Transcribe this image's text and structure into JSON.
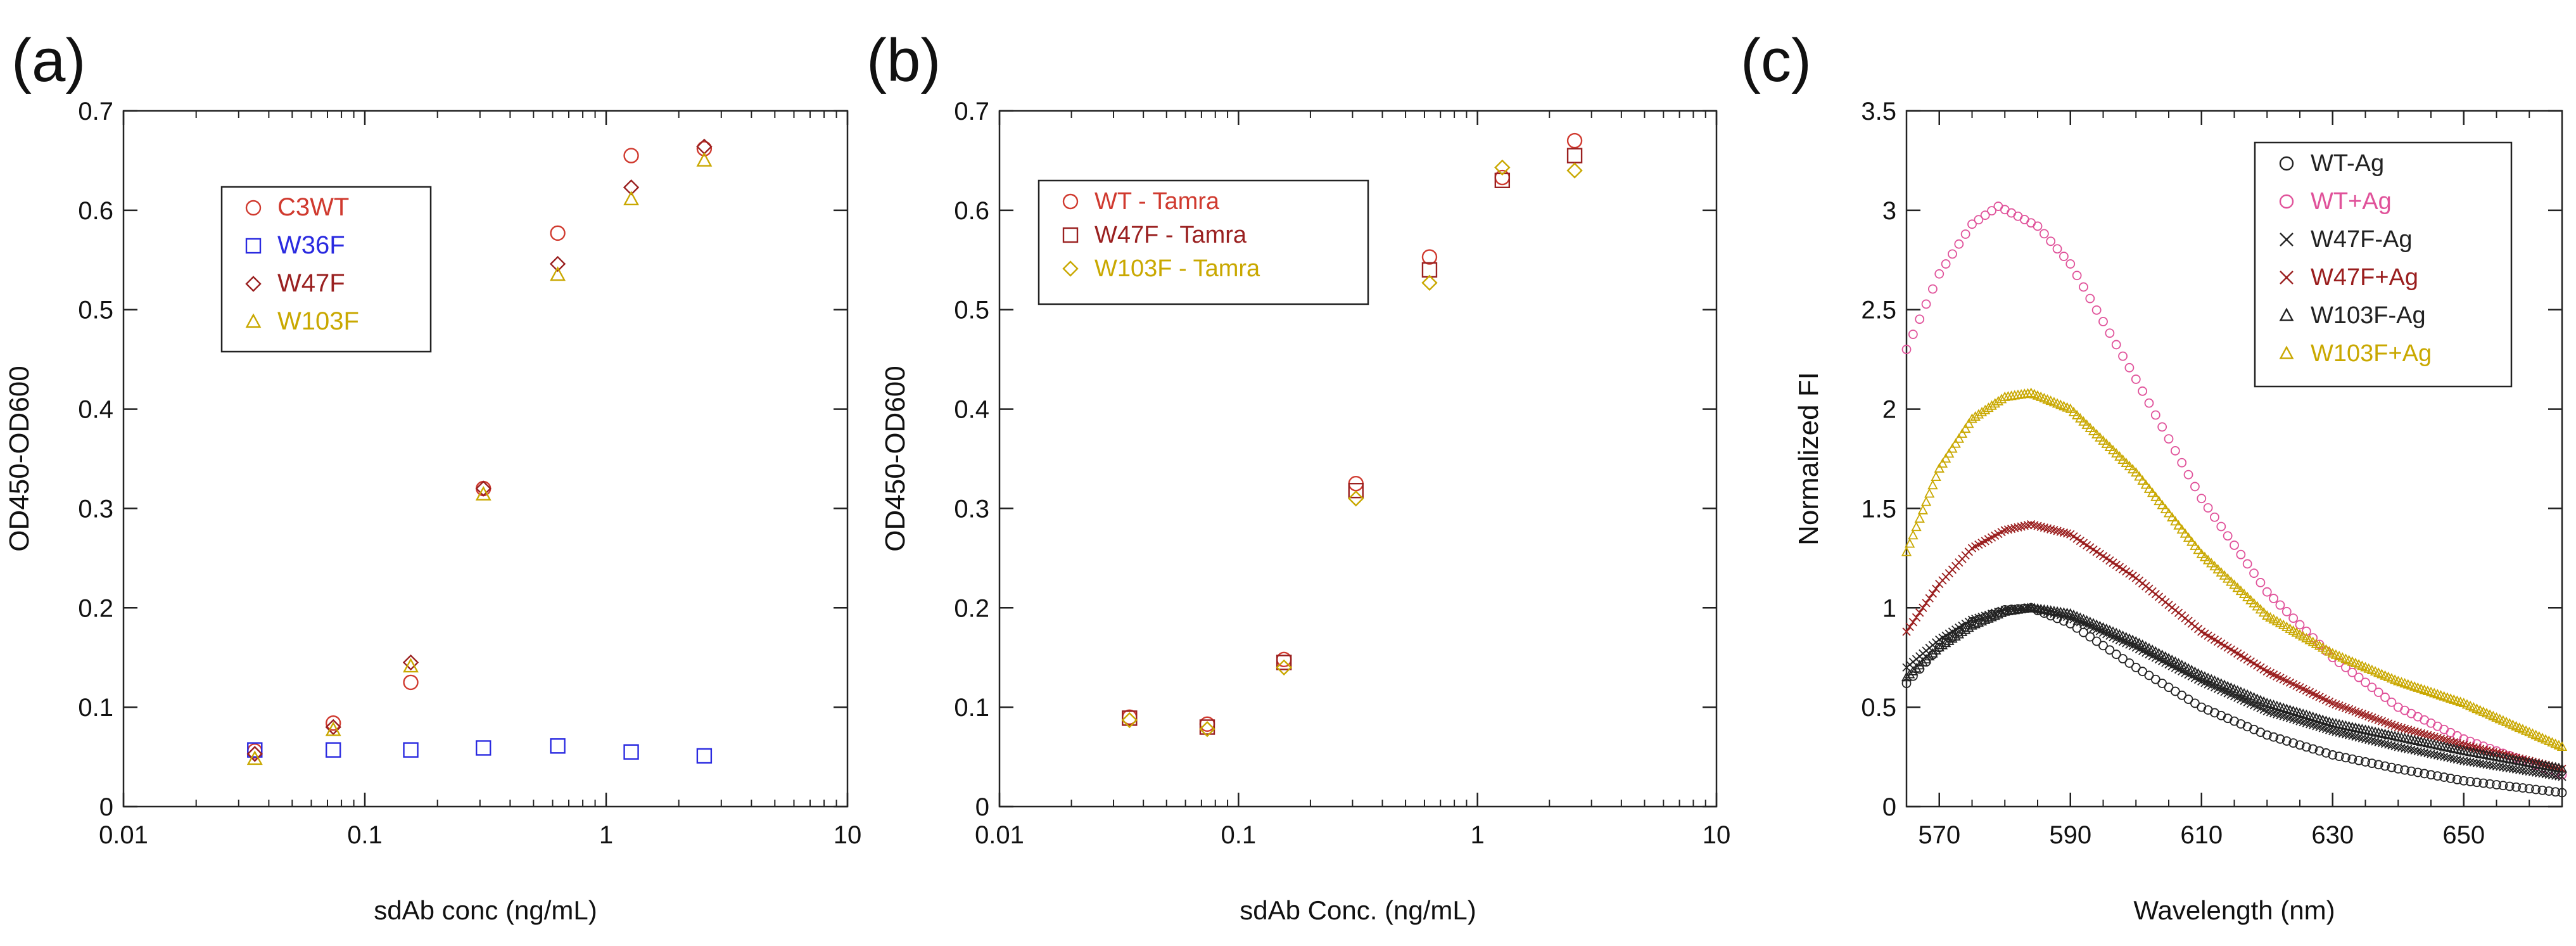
{
  "chart_data": [
    {
      "panel": "(a)",
      "type": "scatter",
      "xscale": "log",
      "xlim": [
        0.01,
        10
      ],
      "ylim": [
        0,
        0.7
      ],
      "xticks": [
        0.01,
        0.1,
        1,
        10
      ],
      "xtick_labels": [
        "0.01",
        "0.1",
        "1",
        "10"
      ],
      "yticks": [
        0,
        0.1,
        0.2,
        0.3,
        0.4,
        0.5,
        0.6,
        0.7
      ],
      "ytick_labels": [
        "0",
        "0.1",
        "0.2",
        "0.3",
        "0.4",
        "0.5",
        "0.6",
        "0.7"
      ],
      "xlabel": "sdAb conc (ng/mL)",
      "ylabel": "OD450-OD600",
      "legend_position": "upper-left",
      "series": [
        {
          "name": "C3WT",
          "marker": "circle",
          "color": "#d03a2f",
          "x": [
            0.035,
            0.074,
            0.155,
            0.31,
            0.63,
            1.27,
            2.55
          ],
          "y": [
            0.056,
            0.084,
            0.125,
            0.32,
            0.577,
            0.655,
            0.662
          ]
        },
        {
          "name": "W36F",
          "marker": "square",
          "color": "#2a2ae0",
          "x": [
            0.035,
            0.074,
            0.155,
            0.31,
            0.63,
            1.27,
            2.55
          ],
          "y": [
            0.057,
            0.057,
            0.057,
            0.059,
            0.061,
            0.055,
            0.051
          ]
        },
        {
          "name": "W47F",
          "marker": "diamond",
          "color": "#9a2020",
          "x": [
            0.035,
            0.074,
            0.155,
            0.31,
            0.63,
            1.27,
            2.55
          ],
          "y": [
            0.053,
            0.08,
            0.145,
            0.32,
            0.546,
            0.623,
            0.664
          ]
        },
        {
          "name": "W103F",
          "marker": "triangle",
          "color": "#c9a800",
          "x": [
            0.035,
            0.074,
            0.155,
            0.31,
            0.63,
            1.27,
            2.55
          ],
          "y": [
            0.048,
            0.077,
            0.141,
            0.314,
            0.535,
            0.611,
            0.65
          ]
        }
      ]
    },
    {
      "panel": "(b)",
      "type": "scatter",
      "xscale": "log",
      "xlim": [
        0.01,
        10
      ],
      "ylim": [
        0,
        0.7
      ],
      "xticks": [
        0.01,
        0.1,
        1,
        10
      ],
      "xtick_labels": [
        "0.01",
        "0.1",
        "1",
        "10"
      ],
      "yticks": [
        0,
        0.1,
        0.2,
        0.3,
        0.4,
        0.5,
        0.6,
        0.7
      ],
      "ytick_labels": [
        "0",
        "0.1",
        "0.2",
        "0.3",
        "0.4",
        "0.5",
        "0.6",
        "0.7"
      ],
      "xlabel": "sdAb Conc. (ng/mL)",
      "ylabel": "OD450-OD600",
      "legend_position": "upper-left",
      "series": [
        {
          "name": "WT - Tamra",
          "marker": "circle",
          "color": "#d03a2f",
          "x": [
            0.035,
            0.074,
            0.155,
            0.31,
            0.63,
            1.27,
            2.55
          ],
          "y": [
            0.09,
            0.083,
            0.148,
            0.325,
            0.553,
            0.633,
            0.67
          ]
        },
        {
          "name": "W47F - Tamra",
          "marker": "square",
          "color": "#9a2020",
          "x": [
            0.035,
            0.074,
            0.155,
            0.31,
            0.63,
            1.27,
            2.55
          ],
          "y": [
            0.089,
            0.08,
            0.145,
            0.318,
            0.54,
            0.63,
            0.655
          ]
        },
        {
          "name": "W103F - Tamra",
          "marker": "diamond",
          "color": "#c9a800",
          "x": [
            0.035,
            0.074,
            0.155,
            0.31,
            0.63,
            1.27,
            2.55
          ],
          "y": [
            0.087,
            0.078,
            0.14,
            0.31,
            0.527,
            0.643,
            0.64
          ]
        }
      ]
    },
    {
      "panel": "(c)",
      "type": "scatter",
      "xlim": [
        565,
        665
      ],
      "ylim": [
        0,
        3.5
      ],
      "xticks": [
        570,
        590,
        610,
        630,
        650
      ],
      "xtick_labels": [
        "570",
        "590",
        "610",
        "630",
        "650"
      ],
      "yticks": [
        0,
        0.5,
        1,
        1.5,
        2,
        2.5,
        3,
        3.5
      ],
      "ytick_labels": [
        "0",
        "0.5",
        "1",
        "1.5",
        "2",
        "2.5",
        "3",
        "3.5"
      ],
      "xlabel": "Wavelength (nm)",
      "ylabel": "Normalized FI",
      "legend_position": "upper-right",
      "series": [
        {
          "name": "WT-Ag",
          "marker": "circle",
          "color": "#222222",
          "x_step": 1,
          "wl": [
            565,
            570,
            575,
            580,
            584,
            590,
            600,
            610,
            620,
            630,
            640,
            650,
            665
          ],
          "fi": [
            0.62,
            0.8,
            0.93,
            0.99,
            1.0,
            0.92,
            0.7,
            0.5,
            0.36,
            0.26,
            0.19,
            0.13,
            0.07
          ]
        },
        {
          "name": "WT+Ag",
          "marker": "circle",
          "color": "#e0529a",
          "x_step": 1,
          "wl": [
            565,
            570,
            575,
            579,
            585,
            590,
            600,
            610,
            620,
            630,
            640,
            650,
            665
          ],
          "fi": [
            2.3,
            2.68,
            2.93,
            3.02,
            2.92,
            2.73,
            2.15,
            1.55,
            1.08,
            0.75,
            0.5,
            0.34,
            0.16
          ]
        },
        {
          "name": "W47F-Ag",
          "marker": "x",
          "color": "#222222",
          "x_step": 0.5,
          "wl": [
            565,
            570,
            575,
            580,
            584,
            590,
            600,
            610,
            620,
            630,
            640,
            650,
            665
          ],
          "fi": [
            0.7,
            0.84,
            0.94,
            0.99,
            1.0,
            0.95,
            0.8,
            0.63,
            0.48,
            0.38,
            0.3,
            0.23,
            0.15
          ]
        },
        {
          "name": "W47F+Ag",
          "marker": "x",
          "color": "#9a1e1e",
          "x_step": 0.5,
          "wl": [
            565,
            570,
            575,
            580,
            584,
            590,
            600,
            610,
            620,
            630,
            640,
            650,
            665
          ],
          "fi": [
            0.88,
            1.12,
            1.3,
            1.39,
            1.42,
            1.37,
            1.15,
            0.88,
            0.68,
            0.52,
            0.4,
            0.31,
            0.19
          ]
        },
        {
          "name": "W103F-Ag",
          "marker": "triangle",
          "color": "#222222",
          "x_step": 0.5,
          "wl": [
            565,
            570,
            575,
            580,
            584,
            590,
            600,
            610,
            620,
            630,
            640,
            650,
            665
          ],
          "fi": [
            0.65,
            0.8,
            0.91,
            0.98,
            1.0,
            0.97,
            0.83,
            0.66,
            0.52,
            0.42,
            0.35,
            0.28,
            0.19
          ]
        },
        {
          "name": "W103F+Ag",
          "marker": "triangle",
          "color": "#c9a800",
          "x_step": 0.5,
          "wl": [
            565,
            570,
            575,
            580,
            584,
            590,
            600,
            610,
            620,
            630,
            640,
            650,
            665
          ],
          "fi": [
            1.28,
            1.7,
            1.95,
            2.06,
            2.08,
            2.0,
            1.68,
            1.27,
            0.96,
            0.77,
            0.63,
            0.52,
            0.3
          ]
        }
      ]
    }
  ]
}
